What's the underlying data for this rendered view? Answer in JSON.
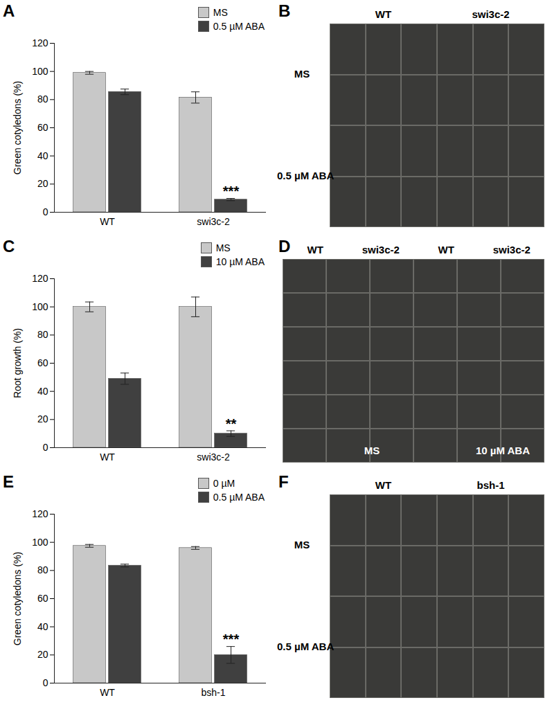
{
  "chart_data": [
    {
      "type": "bar",
      "title": "A",
      "y_label": "Green cotyledons (%)",
      "categories": [
        "WT",
        "swi3c-2"
      ],
      "series": [
        {
          "name": "MS",
          "color": "#c8c8c8",
          "values": [
            99,
            81.5
          ],
          "errors": [
            1,
            4
          ]
        },
        {
          "name": "0.5 µM ABA",
          "color": "#404040",
          "values": [
            85.5,
            9
          ],
          "errors": [
            2,
            0.8
          ]
        }
      ],
      "annotations": [
        {
          "text": "***",
          "category": "swi3c-2",
          "series": "0.5 µM ABA"
        }
      ],
      "ylim": [
        0,
        120
      ],
      "yticks": [
        0,
        20,
        40,
        60,
        80,
        100,
        120
      ],
      "legend": "top-right"
    },
    {
      "type": "image",
      "title": "B",
      "columns": [
        "WT",
        "swi3c-2"
      ],
      "rows": [
        "MS",
        "0.5 µM ABA"
      ]
    },
    {
      "type": "bar",
      "title": "C",
      "y_label": "Root growth (%)",
      "categories": [
        "WT",
        "swi3c-2"
      ],
      "series": [
        {
          "name": "MS",
          "color": "#c8c8c8",
          "values": [
            100,
            100
          ],
          "errors": [
            3.5,
            7
          ]
        },
        {
          "name": "10 µM ABA",
          "color": "#404040",
          "values": [
            49,
            10
          ],
          "errors": [
            4,
            2
          ]
        }
      ],
      "annotations": [
        {
          "text": "**",
          "category": "swi3c-2",
          "series": "10 µM ABA"
        }
      ],
      "ylim": [
        0,
        120
      ],
      "yticks": [
        0,
        20,
        40,
        60,
        80,
        100,
        120
      ],
      "legend": "top-right"
    },
    {
      "type": "image",
      "title": "D",
      "columns": [
        "WT",
        "swi3c-2",
        "WT",
        "swi3c-2"
      ],
      "panels": [
        "MS",
        "10 µM ABA"
      ]
    },
    {
      "type": "bar",
      "title": "E",
      "y_label": "Green cotyledons (%)",
      "categories": [
        "WT",
        "bsh-1"
      ],
      "series": [
        {
          "name": "0 µM",
          "color": "#c8c8c8",
          "values": [
            97.5,
            96
          ],
          "errors": [
            1,
            1
          ]
        },
        {
          "name": "0.5 µM ABA",
          "color": "#404040",
          "values": [
            83.5,
            20
          ],
          "errors": [
            1,
            6
          ]
        }
      ],
      "annotations": [
        {
          "text": "***",
          "category": "bsh-1",
          "series": "0.5 µM ABA"
        }
      ],
      "ylim": [
        0,
        120
      ],
      "yticks": [
        0,
        20,
        40,
        60,
        80,
        100,
        120
      ],
      "legend": "top-right"
    },
    {
      "type": "image",
      "title": "F",
      "columns": [
        "WT",
        "bsh-1"
      ],
      "rows": [
        "MS",
        "0.5 µM ABA"
      ]
    }
  ]
}
